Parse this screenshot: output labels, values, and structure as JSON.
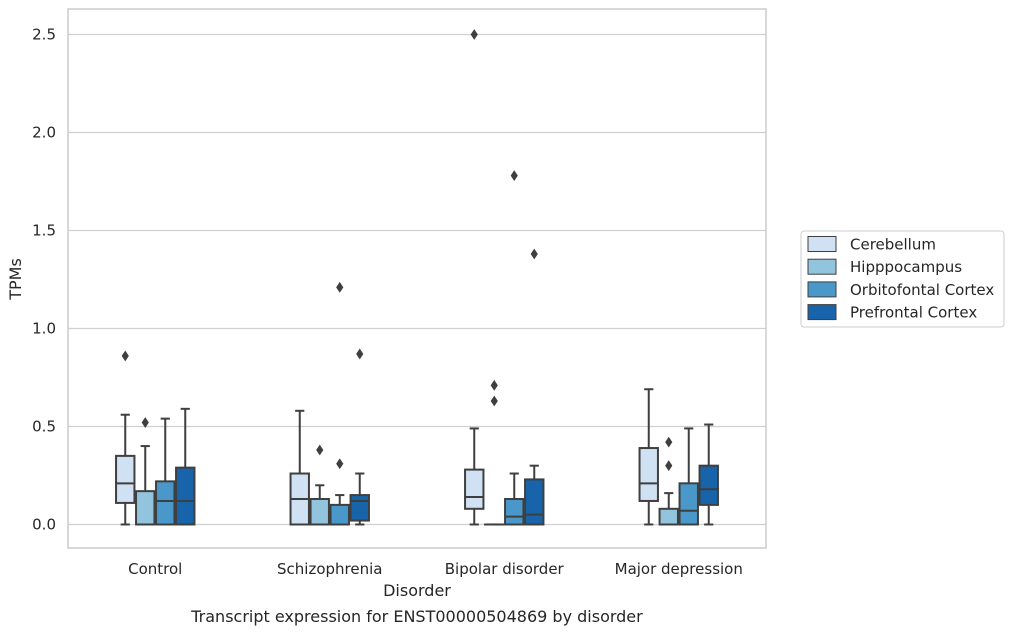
{
  "chart_data": {
    "type": "box",
    "title": "",
    "caption": "Transcript expression for ENST00000504869 by disorder",
    "xlabel": "Disorder",
    "ylabel": "TPMs",
    "ylim": [
      -0.12,
      2.63
    ],
    "yticks": [
      0.0,
      0.5,
      1.0,
      1.5,
      2.0,
      2.5
    ],
    "ytick_labels": [
      "0.0",
      "0.5",
      "1.0",
      "1.5",
      "2.0",
      "2.5"
    ],
    "categories": [
      "Control",
      "Schizophrenia",
      "Bipolar disorder",
      "Major depression"
    ],
    "grid": "horizontal",
    "legend_position": "center-right",
    "series": [
      {
        "name": "Cerebellum",
        "color": "#cfe1f2",
        "boxes": [
          {
            "whislo": 0.0,
            "q1": 0.11,
            "med": 0.21,
            "q3": 0.35,
            "whishi": 0.56,
            "fliers": [
              0.86
            ]
          },
          {
            "whislo": 0.0,
            "q1": 0.0,
            "med": 0.13,
            "q3": 0.26,
            "whishi": 0.58,
            "fliers": []
          },
          {
            "whislo": 0.0,
            "q1": 0.08,
            "med": 0.14,
            "q3": 0.28,
            "whishi": 0.49,
            "fliers": [
              2.5
            ]
          },
          {
            "whislo": 0.0,
            "q1": 0.12,
            "med": 0.21,
            "q3": 0.39,
            "whishi": 0.69,
            "fliers": []
          }
        ]
      },
      {
        "name": "Hipppocampus",
        "color": "#93c4de",
        "boxes": [
          {
            "whislo": 0.0,
            "q1": 0.0,
            "med": 0.0,
            "q3": 0.17,
            "whishi": 0.4,
            "fliers": [
              0.52
            ]
          },
          {
            "whislo": 0.0,
            "q1": 0.0,
            "med": 0.0,
            "q3": 0.13,
            "whishi": 0.2,
            "fliers": [
              0.38
            ]
          },
          {
            "whislo": 0.0,
            "q1": 0.0,
            "med": 0.0,
            "q3": 0.0,
            "whishi": 0.0,
            "fliers": [
              0.63,
              0.71
            ]
          },
          {
            "whislo": 0.0,
            "q1": 0.0,
            "med": 0.0,
            "q3": 0.08,
            "whishi": 0.16,
            "fliers": [
              0.3,
              0.42
            ]
          }
        ]
      },
      {
        "name": "Orbitofontal Cortex",
        "color": "#4a98c9",
        "boxes": [
          {
            "whislo": 0.0,
            "q1": 0.0,
            "med": 0.12,
            "q3": 0.22,
            "whishi": 0.54,
            "fliers": []
          },
          {
            "whislo": 0.0,
            "q1": 0.0,
            "med": 0.0,
            "q3": 0.1,
            "whishi": 0.15,
            "fliers": [
              0.31,
              1.21
            ]
          },
          {
            "whislo": 0.0,
            "q1": 0.0,
            "med": 0.04,
            "q3": 0.13,
            "whishi": 0.26,
            "fliers": [
              1.78
            ]
          },
          {
            "whislo": 0.0,
            "q1": 0.0,
            "med": 0.07,
            "q3": 0.21,
            "whishi": 0.49,
            "fliers": []
          }
        ]
      },
      {
        "name": "Prefrontal Cortex",
        "color": "#1764ab",
        "boxes": [
          {
            "whislo": 0.0,
            "q1": 0.0,
            "med": 0.12,
            "q3": 0.29,
            "whishi": 0.59,
            "fliers": []
          },
          {
            "whislo": 0.0,
            "q1": 0.02,
            "med": 0.12,
            "q3": 0.15,
            "whishi": 0.26,
            "fliers": [
              0.87
            ]
          },
          {
            "whislo": 0.0,
            "q1": 0.0,
            "med": 0.05,
            "q3": 0.23,
            "whishi": 0.3,
            "fliers": [
              1.38
            ]
          },
          {
            "whislo": 0.0,
            "q1": 0.1,
            "med": 0.18,
            "q3": 0.3,
            "whishi": 0.51,
            "fliers": []
          }
        ]
      }
    ]
  }
}
